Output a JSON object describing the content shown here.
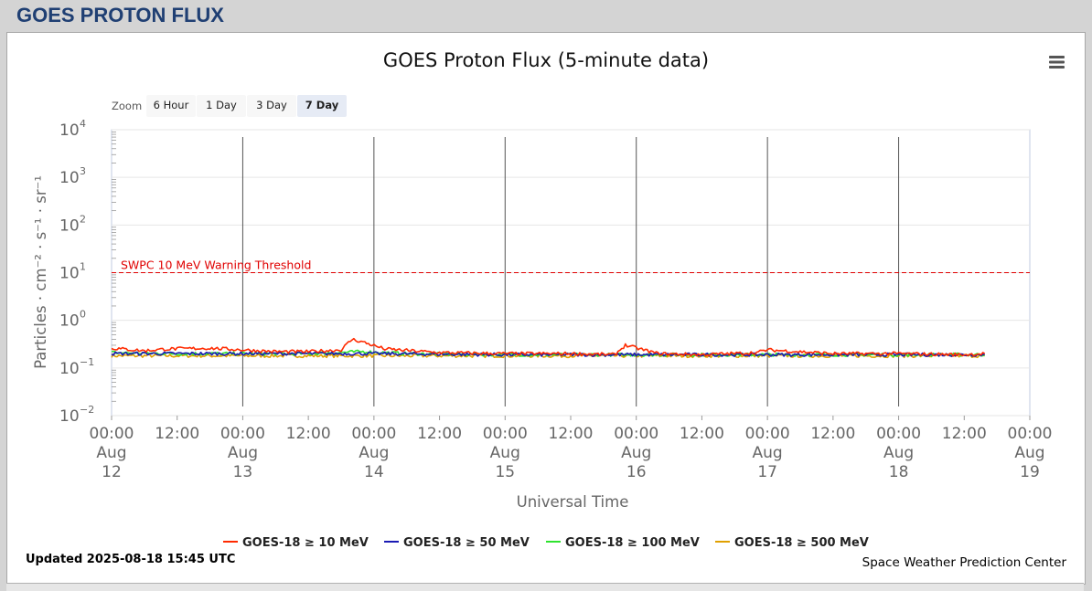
{
  "page": {
    "title": "GOES PROTON FLUX"
  },
  "chart_data": {
    "type": "line",
    "title": "GOES Proton Flux (5-minute data)",
    "xlabel": "Universal Time",
    "ylabel": "Particles · cm⁻² · s⁻¹ · sr⁻¹",
    "y_scale": "log",
    "ylim": [
      0.01,
      10000
    ],
    "y_ticks": [
      {
        "base": "10",
        "exp": "4"
      },
      {
        "base": "10",
        "exp": "3"
      },
      {
        "base": "10",
        "exp": "2"
      },
      {
        "base": "10",
        "exp": "1"
      },
      {
        "base": "10",
        "exp": "0"
      },
      {
        "base": "10",
        "exp": "−1"
      },
      {
        "base": "10",
        "exp": "−2"
      }
    ],
    "xlim": [
      "2025-08-12 00:00",
      "2025-08-19 00:00"
    ],
    "x_ticks": [
      {
        "time": "00:00",
        "month": "Aug",
        "day": "12"
      },
      {
        "time": "12:00",
        "month": "",
        "day": ""
      },
      {
        "time": "00:00",
        "month": "Aug",
        "day": "13"
      },
      {
        "time": "12:00",
        "month": "",
        "day": ""
      },
      {
        "time": "00:00",
        "month": "Aug",
        "day": "14"
      },
      {
        "time": "12:00",
        "month": "",
        "day": ""
      },
      {
        "time": "00:00",
        "month": "Aug",
        "day": "15"
      },
      {
        "time": "12:00",
        "month": "",
        "day": ""
      },
      {
        "time": "00:00",
        "month": "Aug",
        "day": "16"
      },
      {
        "time": "12:00",
        "month": "",
        "day": ""
      },
      {
        "time": "00:00",
        "month": "Aug",
        "day": "17"
      },
      {
        "time": "12:00",
        "month": "",
        "day": ""
      },
      {
        "time": "00:00",
        "month": "Aug",
        "day": "18"
      },
      {
        "time": "12:00",
        "month": "",
        "day": ""
      },
      {
        "time": "00:00",
        "month": "Aug",
        "day": "19"
      }
    ],
    "threshold": {
      "label": "SWPC 10 MeV Warning Threshold",
      "value": 10,
      "color": "#e00000"
    },
    "day_lines": [
      "2025-08-13 00:00",
      "2025-08-14 00:00",
      "2025-08-15 00:00",
      "2025-08-16 00:00",
      "2025-08-17 00:00",
      "2025-08-18 00:00"
    ],
    "series": [
      {
        "name": "GOES-18 ≥ 10 MeV",
        "color": "#ff2a00",
        "x": [
          "2025-08-12 00:00",
          "2025-08-12 06:00",
          "2025-08-12 10:00",
          "2025-08-12 18:00",
          "2025-08-13 00:00",
          "2025-08-13 06:00",
          "2025-08-13 12:00",
          "2025-08-13 18:00",
          "2025-08-13 20:00",
          "2025-08-13 22:00",
          "2025-08-14 02:00",
          "2025-08-14 12:00",
          "2025-08-15 00:00",
          "2025-08-15 12:00",
          "2025-08-15 20:00",
          "2025-08-15 22:00",
          "2025-08-16 04:00",
          "2025-08-16 12:00",
          "2025-08-16 22:00",
          "2025-08-17 00:00",
          "2025-08-17 12:00",
          "2025-08-18 00:00",
          "2025-08-18 12:00",
          "2025-08-18 15:45"
        ],
        "y": [
          0.26,
          0.23,
          0.25,
          0.26,
          0.24,
          0.22,
          0.22,
          0.24,
          0.4,
          0.35,
          0.25,
          0.21,
          0.2,
          0.2,
          0.19,
          0.3,
          0.2,
          0.19,
          0.21,
          0.24,
          0.2,
          0.2,
          0.19,
          0.2
        ]
      },
      {
        "name": "GOES-18 ≥ 50 MeV",
        "color": "#1a1ab4",
        "x": [
          "2025-08-12 00:00",
          "2025-08-13 00:00",
          "2025-08-14 00:00",
          "2025-08-15 00:00",
          "2025-08-16 00:00",
          "2025-08-17 00:00",
          "2025-08-18 00:00",
          "2025-08-18 15:45"
        ],
        "y": [
          0.2,
          0.2,
          0.2,
          0.19,
          0.19,
          0.19,
          0.19,
          0.19
        ]
      },
      {
        "name": "GOES-18 ≥ 100 MeV",
        "color": "#2ee32e",
        "x": [
          "2025-08-12 00:00",
          "2025-08-12 12:00",
          "2025-08-13 00:00",
          "2025-08-13 12:00",
          "2025-08-13 22:00",
          "2025-08-14 06:00",
          "2025-08-15 00:00",
          "2025-08-16 00:00",
          "2025-08-17 00:00",
          "2025-08-18 00:00",
          "2025-08-18 15:45"
        ],
        "y": [
          0.21,
          0.2,
          0.2,
          0.2,
          0.22,
          0.2,
          0.19,
          0.19,
          0.19,
          0.19,
          0.19
        ]
      },
      {
        "name": "GOES-18 ≥ 500 MeV",
        "color": "#e0a000",
        "x": [
          "2025-08-12 00:00",
          "2025-08-13 00:00",
          "2025-08-14 00:00",
          "2025-08-15 00:00",
          "2025-08-16 00:00",
          "2025-08-17 00:00",
          "2025-08-18 00:00",
          "2025-08-18 15:45"
        ],
        "y": [
          0.18,
          0.18,
          0.18,
          0.18,
          0.18,
          0.18,
          0.18,
          0.18
        ]
      }
    ],
    "legend_position": "bottom-center"
  },
  "zoom": {
    "label": "Zoom",
    "options": [
      "6 Hour",
      "1 Day",
      "3 Day",
      "7 Day"
    ],
    "selected": "7 Day"
  },
  "footer": {
    "updated": "Updated 2025-08-18 15:45 UTC",
    "credit": "Space Weather Prediction Center"
  },
  "colors": {
    "accent": "#1f3f73",
    "active_zoom": "#e6ebf5",
    "plot_border": "#c0cbe0"
  }
}
